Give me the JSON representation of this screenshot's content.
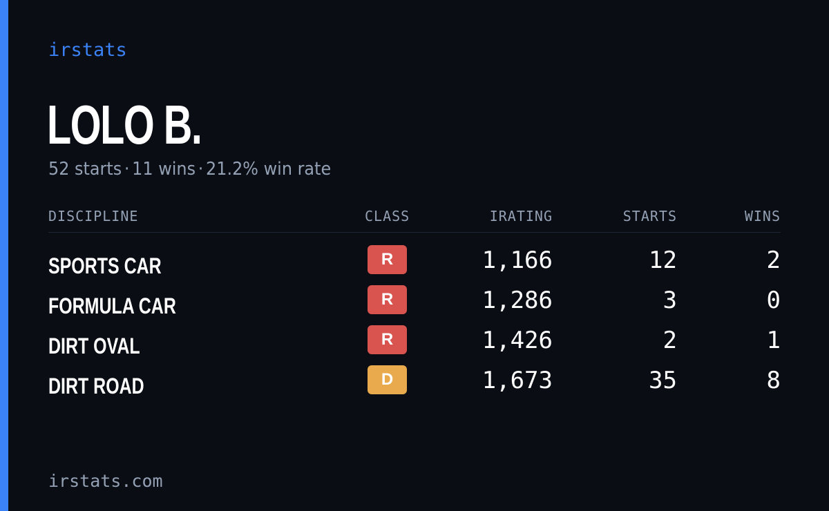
{
  "brand": "irstats",
  "player": {
    "name": "LOLO B.",
    "starts_text": "52 starts",
    "wins_text": "11 wins",
    "win_rate_text": "21.2% win rate",
    "separator": "·"
  },
  "table": {
    "headers": {
      "discipline": "DISCIPLINE",
      "class": "CLASS",
      "irating": "IRATING",
      "starts": "STARTS",
      "wins": "WINS"
    },
    "rows": [
      {
        "discipline": "SPORTS CAR",
        "class": "R",
        "irating": "1,166",
        "starts": "12",
        "wins": "2"
      },
      {
        "discipline": "FORMULA CAR",
        "class": "R",
        "irating": "1,286",
        "starts": "3",
        "wins": "0"
      },
      {
        "discipline": "DIRT OVAL",
        "class": "R",
        "irating": "1,426",
        "starts": "2",
        "wins": "1"
      },
      {
        "discipline": "DIRT ROAD",
        "class": "D",
        "irating": "1,673",
        "starts": "35",
        "wins": "8"
      }
    ]
  },
  "colors": {
    "background": "#0a0d14",
    "accent": "#3b82f6",
    "muted": "#94a0b4",
    "class_r": "#d9534f",
    "class_d": "#e8aa4c"
  },
  "footer": "irstats.com"
}
